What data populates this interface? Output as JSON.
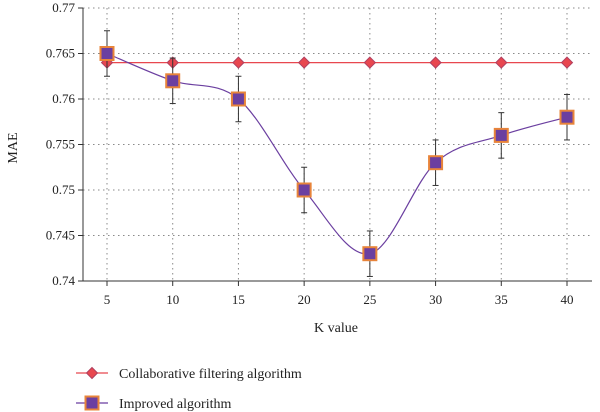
{
  "chart_data": {
    "type": "line",
    "title": "",
    "xlabel": "K value",
    "ylabel": "MAE",
    "x": [
      5,
      10,
      15,
      20,
      25,
      30,
      35,
      40
    ],
    "xticks": [
      "5",
      "10",
      "15",
      "20",
      "25",
      "30",
      "35",
      "40"
    ],
    "ylim": [
      0.74,
      0.77
    ],
    "yticks": [
      "0.74",
      "0.745",
      "0.75",
      "0.755",
      "0.76",
      "0.765",
      "0.77"
    ],
    "grid": true,
    "legend_position": "bottom",
    "series": [
      {
        "name": "Collaborative filtering algorithm",
        "marker": "diamond",
        "line_color": "#e8474f",
        "marker_fill": "#e8474f",
        "marker_edge": "#b04060",
        "values": [
          0.764,
          0.764,
          0.764,
          0.764,
          0.764,
          0.764,
          0.764,
          0.764
        ]
      },
      {
        "name": "Improved algorithm",
        "marker": "square",
        "line_color": "#6b3fa0",
        "marker_fill": "#6b3fa0",
        "marker_edge": "#e8843a",
        "values": [
          0.765,
          0.762,
          0.76,
          0.75,
          0.743,
          0.753,
          0.756,
          0.758
        ],
        "error": [
          0.0025,
          0.0025,
          0.0025,
          0.0025,
          0.0025,
          0.0025,
          0.0025,
          0.0025
        ]
      }
    ]
  }
}
